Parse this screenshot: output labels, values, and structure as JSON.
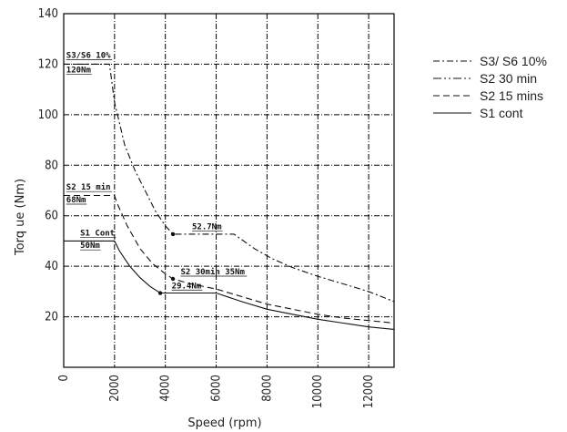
{
  "chart_data": {
    "type": "line",
    "xlabel": "Speed (rpm)",
    "ylabel": "Torq ue (Nm)",
    "xlim": [
      0,
      13000
    ],
    "ylim": [
      0,
      140
    ],
    "x_ticks": [
      {
        "value": 0,
        "label": "0"
      },
      {
        "value": 2000,
        "label": "2000"
      },
      {
        "value": 4000,
        "label": "4000"
      },
      {
        "value": 6000,
        "label": "6000"
      },
      {
        "value": 8000,
        "label": "8000"
      },
      {
        "value": 10000,
        "label": "10000"
      },
      {
        "value": 12000,
        "label": "12000"
      }
    ],
    "y_ticks": [
      {
        "value": 20,
        "label": "20"
      },
      {
        "value": 40,
        "label": "40"
      },
      {
        "value": 60,
        "label": "60"
      },
      {
        "value": 80,
        "label": "80"
      },
      {
        "value": 100,
        "label": "100"
      },
      {
        "value": 120,
        "label": "120"
      },
      {
        "value": 140,
        "label": "140"
      }
    ],
    "grid": true,
    "legend_position": "right",
    "series": [
      {
        "name": "S3/ S6 10%",
        "dash": "dashdot",
        "points": [
          [
            0,
            120
          ],
          [
            1800,
            120
          ],
          [
            2000,
            105
          ],
          [
            2400,
            88
          ],
          [
            2800,
            78
          ],
          [
            3200,
            70
          ],
          [
            3600,
            62
          ],
          [
            4000,
            56
          ],
          [
            4300,
            52.7
          ],
          [
            6700,
            52.7
          ],
          [
            7500,
            47
          ],
          [
            8200,
            43
          ],
          [
            9000,
            39.5
          ],
          [
            10000,
            36
          ],
          [
            11000,
            33
          ],
          [
            12000,
            30
          ],
          [
            13000,
            26
          ]
        ]
      },
      {
        "name": "S2 30 min",
        "dash": "dashdotdot",
        "points": []
      },
      {
        "name": "S2 15 mins",
        "dash": "dashed",
        "points": [
          [
            0,
            68
          ],
          [
            2000,
            68
          ],
          [
            2100,
            65
          ],
          [
            2500,
            56
          ],
          [
            3000,
            47
          ],
          [
            3500,
            41
          ],
          [
            4000,
            37
          ],
          [
            4300,
            35
          ],
          [
            5000,
            33
          ],
          [
            6000,
            31
          ],
          [
            7000,
            28
          ],
          [
            8000,
            25
          ],
          [
            9000,
            23
          ],
          [
            10000,
            21
          ],
          [
            11000,
            19.5
          ],
          [
            12000,
            18.5
          ],
          [
            13000,
            17.5
          ]
        ]
      },
      {
        "name": "S1 cont",
        "dash": "solid",
        "points": [
          [
            0,
            50
          ],
          [
            2000,
            50
          ],
          [
            2200,
            46
          ],
          [
            2600,
            40
          ],
          [
            3000,
            35.5
          ],
          [
            3400,
            32
          ],
          [
            3800,
            29.4
          ],
          [
            6000,
            29.4
          ],
          [
            7000,
            26
          ],
          [
            8000,
            23
          ],
          [
            9000,
            21
          ],
          [
            10000,
            19
          ],
          [
            11000,
            17.5
          ],
          [
            12000,
            16
          ],
          [
            13000,
            15
          ]
        ]
      }
    ],
    "markers": [
      [
        4300,
        52.7
      ],
      [
        4300,
        35
      ],
      [
        3800,
        29.4
      ]
    ],
    "annotations": [
      {
        "id": "s3-a",
        "text": "S3/S6 10%",
        "x": 100,
        "y": 122.5
      },
      {
        "id": "s3-b",
        "text": "120Nm",
        "x": 100,
        "y": 116.8
      },
      {
        "id": "s215-a",
        "text": "S2 15 min",
        "x": 100,
        "y": 70.3
      },
      {
        "id": "s215-b",
        "text": "68Nm",
        "x": 100,
        "y": 65.3
      },
      {
        "id": "s1-a",
        "text": "S1 Cont",
        "x": 650,
        "y": 52.2
      },
      {
        "id": "s1-b",
        "text": "50Nm",
        "x": 650,
        "y": 47.2
      },
      {
        "id": "s3-val",
        "text": "52.7Nm",
        "x": 5050,
        "y": 54.6
      },
      {
        "id": "s230",
        "text": "S2 30min 35Nm",
        "x": 4600,
        "y": 36.8
      },
      {
        "id": "s1-val",
        "text": "29.4Nm",
        "x": 4250,
        "y": 31.3
      }
    ]
  }
}
